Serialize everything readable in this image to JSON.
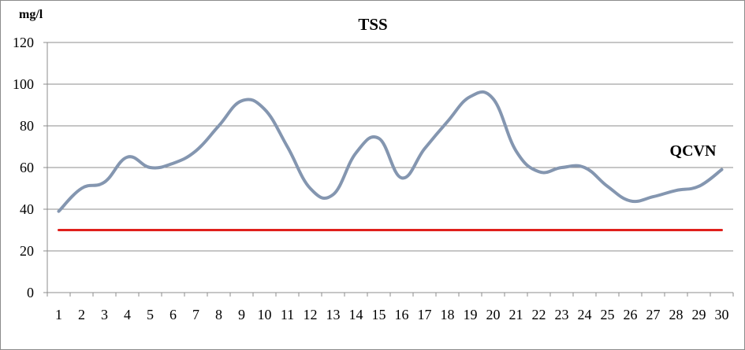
{
  "chart_data": {
    "type": "line",
    "title": "TSS",
    "ylabel": "mg/l",
    "xlabel": "",
    "ylim": [
      0,
      120
    ],
    "yticks": [
      0,
      20,
      40,
      60,
      80,
      100,
      120
    ],
    "grid": true,
    "categories": [
      "1",
      "2",
      "3",
      "4",
      "5",
      "6",
      "7",
      "8",
      "9",
      "10",
      "11",
      "12",
      "13",
      "14",
      "15",
      "16",
      "17",
      "18",
      "19",
      "20",
      "21",
      "22",
      "23",
      "24",
      "25",
      "26",
      "27",
      "28",
      "29",
      "30"
    ],
    "series": [
      {
        "values": [
          39,
          50,
          53,
          65,
          60,
          62,
          68,
          80,
          92,
          88,
          70,
          50,
          47,
          67,
          74,
          55,
          69,
          82,
          94,
          93,
          68,
          58,
          60,
          60,
          51,
          44,
          46,
          49,
          51,
          59
        ],
        "color": "#8496b0"
      },
      {
        "name": "QCVN",
        "values": [
          30,
          30,
          30,
          30,
          30,
          30,
          30,
          30,
          30,
          30,
          30,
          30,
          30,
          30,
          30,
          30,
          30,
          30,
          30,
          30,
          30,
          30,
          30,
          30,
          30,
          30,
          30,
          30,
          30,
          30
        ],
        "color": "#e0201c"
      }
    ],
    "annotations": [
      {
        "text": "QCVN"
      }
    ]
  }
}
